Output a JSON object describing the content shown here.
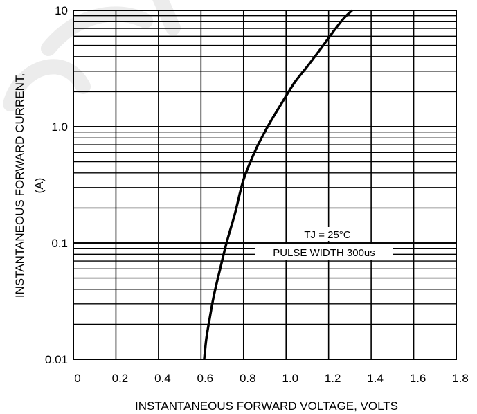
{
  "chart_data": {
    "type": "line",
    "x_scale": "linear",
    "y_scale": "log",
    "xlim": [
      0,
      1.8
    ],
    "ylim": [
      0.01,
      10
    ],
    "xlabel": "INSTANTANEOUS FORWARD VOLTAGE, VOLTS",
    "ylabel_lines": [
      "INSTANTANEOUS FORWARD CURRENT,",
      "(A)"
    ],
    "x_ticks": [
      "0",
      "0.2",
      "0.4",
      "0.6",
      "0.8",
      "1.0",
      "1.2",
      "1.4",
      "1.6",
      "1.8"
    ],
    "y_ticks": [
      "0.01",
      "0.1",
      "1.0",
      "10"
    ],
    "grid": true,
    "annotations": [
      "TJ = 25°C",
      "PULSE WIDTH 300us"
    ],
    "series": [
      {
        "x": [
          0.615,
          0.625,
          0.64,
          0.66,
          0.69,
          0.72,
          0.76,
          0.8,
          0.86,
          0.92,
          0.98,
          1.04,
          1.1,
          1.16,
          1.22,
          1.27,
          1.31
        ],
        "y": [
          0.01,
          0.015,
          0.022,
          0.035,
          0.06,
          0.1,
          0.18,
          0.35,
          0.65,
          1.05,
          1.6,
          2.4,
          3.3,
          4.6,
          6.5,
          8.5,
          10
        ],
        "color": "#000000"
      }
    ]
  },
  "annotation_text": {
    "tj": "TJ = 25°C",
    "pulse": "PULSE WIDTH 300us"
  }
}
